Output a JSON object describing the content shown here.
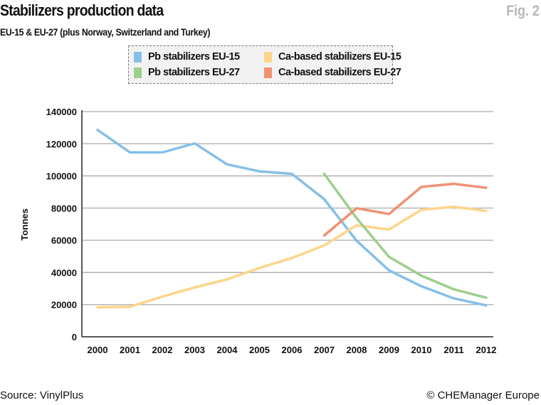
{
  "header": {
    "title": "Stabilizers production data",
    "fig_label": "Fig. 2",
    "subtitle": "EU-15 & EU-27 (plus Norway, Switzerland and Turkey)"
  },
  "footer": {
    "source": "Source: VinylPlus",
    "credit": "© CHEManager Europe"
  },
  "chart_data": {
    "type": "line",
    "title": "Stabilizers production data",
    "subtitle": "EU-15 & EU-27 (plus Norway, Switzerland and Turkey)",
    "xlabel": "",
    "ylabel": "Tonnes",
    "x": [
      2000,
      2001,
      2002,
      2003,
      2004,
      2005,
      2006,
      2007,
      2008,
      2009,
      2010,
      2011,
      2012
    ],
    "ylim": [
      0,
      140000
    ],
    "yticks": [
      0,
      20000,
      40000,
      60000,
      80000,
      100000,
      120000,
      140000
    ],
    "grid": true,
    "legend_placement": "top",
    "series": [
      {
        "name": "Pb stabilizers EU-15",
        "color": "#85bfe8",
        "values": [
          128600,
          114600,
          114600,
          120200,
          107200,
          102800,
          101300,
          85500,
          59700,
          41300,
          31400,
          23900,
          19500
        ]
      },
      {
        "name": "Ca-based stabilizers EU-15",
        "color": "#fdd58a",
        "values": [
          18300,
          18700,
          25000,
          30700,
          35700,
          42800,
          49000,
          56800,
          69300,
          66700,
          78900,
          80800,
          78200
        ]
      },
      {
        "name": "Pb stabilizers EU-27",
        "color": "#9ccf8c",
        "values": [
          null,
          null,
          null,
          null,
          null,
          null,
          null,
          101300,
          73700,
          49700,
          38000,
          29500,
          24300
        ]
      },
      {
        "name": "Ca-based stabilizers EU-27",
        "color": "#ef9274",
        "values": [
          null,
          null,
          null,
          null,
          null,
          null,
          null,
          63000,
          79900,
          76300,
          93200,
          95100,
          92600
        ]
      }
    ]
  }
}
